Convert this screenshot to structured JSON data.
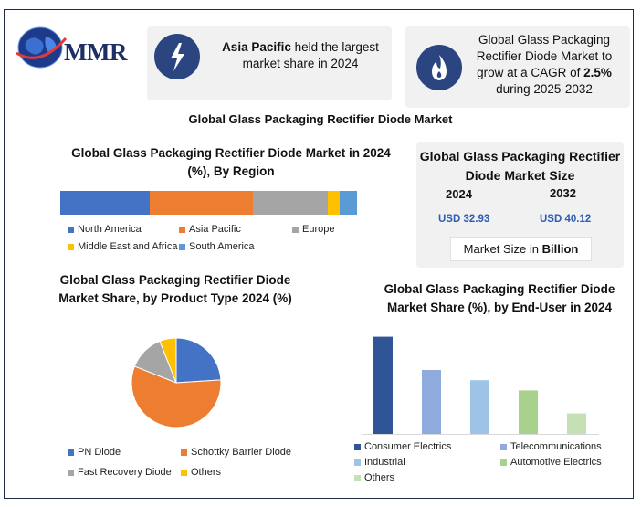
{
  "logo": {
    "text": "MMR",
    "icon": "globe-icon"
  },
  "highlights": [
    {
      "icon": "lightning-icon",
      "bold": "Asia Pacific",
      "text": " held the largest market share in 2024"
    },
    {
      "icon": "flame-icon",
      "pre": "Global Glass Packaging Rectifier Diode Market to grow at a CAGR of ",
      "bold": "2.5%",
      "post": " during 2025-2032"
    }
  ],
  "main_title": "Global Glass Packaging Rectifier Diode Market",
  "market_size": {
    "title": "Global Glass Packaging Rectifier Diode Market Size",
    "year1": "2024",
    "value1": "USD 32.93",
    "year2": "2032",
    "value2": "USD 40.12",
    "unit_pre": "Market Size in ",
    "unit_bold": "Billion"
  },
  "colors": {
    "blue": "#4472c4",
    "orange": "#ed7d31",
    "gray": "#a5a5a5",
    "yellow": "#ffc000",
    "lightblue": "#5b9bd5",
    "navy": "#2f5597",
    "periwinkle": "#8faadc",
    "skyblue": "#9dc3e6",
    "green": "#a9d18e",
    "lightgreen": "#c5e0b4"
  },
  "chart_data": [
    {
      "type": "bar",
      "orientation": "horizontal-stacked-100",
      "title": "Global Glass Packaging Rectifier Diode Market in 2024 (%), By Region",
      "series": [
        {
          "name": "North America",
          "value": 30,
          "color": "#4472c4"
        },
        {
          "name": "Asia Pacific",
          "value": 35,
          "color": "#ed7d31"
        },
        {
          "name": "Europe",
          "value": 25,
          "color": "#a5a5a5"
        },
        {
          "name": "Middle East and Africa",
          "value": 4,
          "color": "#ffc000"
        },
        {
          "name": "South America",
          "value": 6,
          "color": "#5b9bd5"
        }
      ],
      "legend": "bottom"
    },
    {
      "type": "pie",
      "title": "Global Glass Packaging Rectifier Diode Market Share, by Product Type 2024 (%)",
      "slices": [
        {
          "name": "PN Diode",
          "value": 24,
          "color": "#4472c4"
        },
        {
          "name": "Schottky Barrier Diode",
          "value": 57,
          "color": "#ed7d31"
        },
        {
          "name": "Fast Recovery Diode",
          "value": 13,
          "color": "#a5a5a5"
        },
        {
          "name": "Others",
          "value": 6,
          "color": "#ffc000"
        }
      ],
      "legend": "bottom"
    },
    {
      "type": "bar",
      "title": "Global Glass Packaging Rectifier Diode Market Share (%), by End-User in 2024",
      "categories": [
        "Consumer Electrics",
        "Telecommunications",
        "Industrial",
        "Automotive Electrics",
        "Others"
      ],
      "values": [
        38,
        25,
        21,
        17,
        8
      ],
      "colors": [
        "#2f5597",
        "#8faadc",
        "#9dc3e6",
        "#a9d18e",
        "#c5e0b4"
      ],
      "ylim": [
        0,
        40
      ],
      "legend": "bottom"
    }
  ]
}
